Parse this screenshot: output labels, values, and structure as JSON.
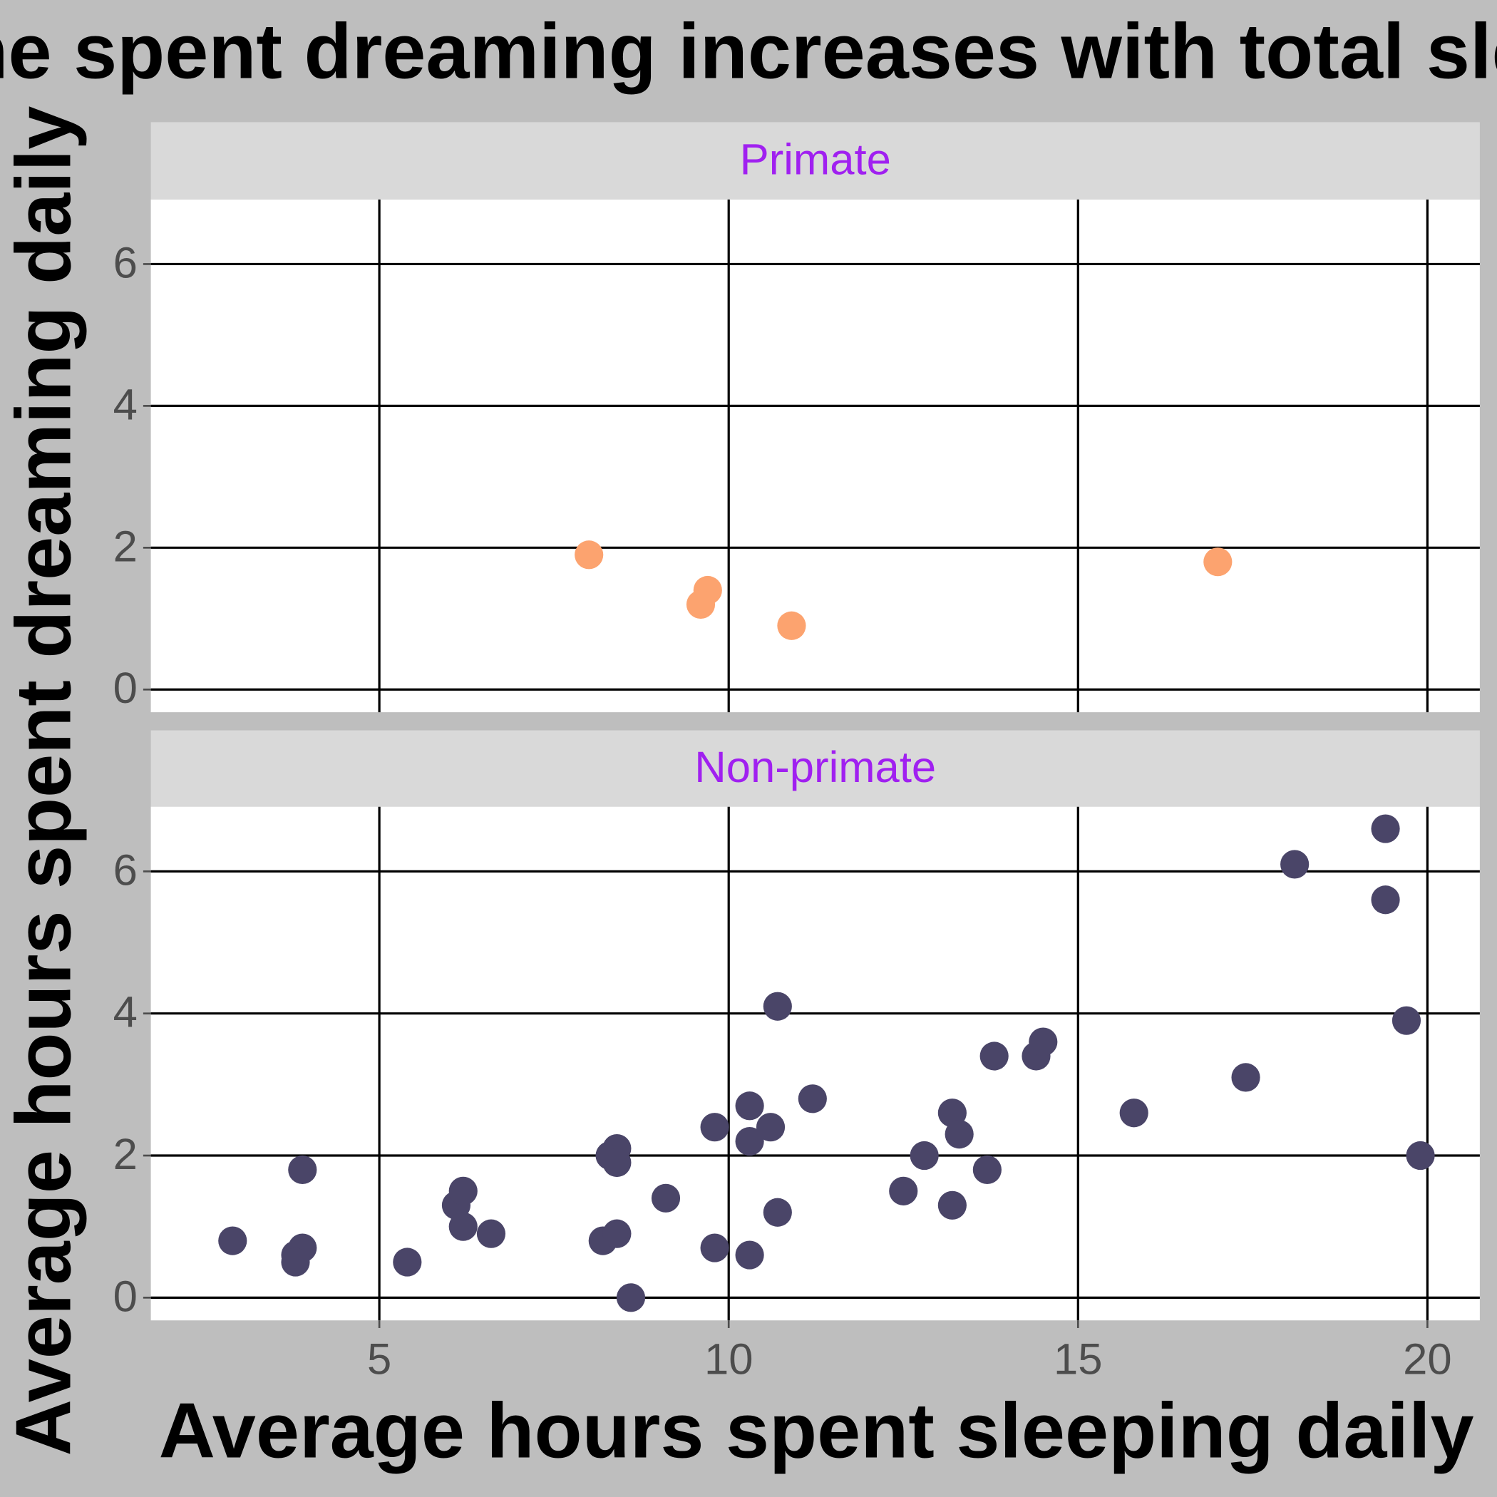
{
  "title": "Time spent dreaming increases with total sleep",
  "x_label": "Average hours spent sleeping daily",
  "y_label": "Average hours spent dreaming daily",
  "chart_data": [
    {
      "type": "scatter",
      "title": "Primate",
      "color": "#fca36f",
      "x": [
        8.0,
        9.7,
        9.6,
        10.9,
        17.0
      ],
      "values": [
        1.9,
        1.4,
        1.2,
        0.9,
        1.8
      ],
      "xlim": [
        1.73,
        20.75
      ],
      "xticks": [
        5,
        10,
        15,
        20
      ],
      "ylim": [
        -0.32,
        6.91
      ],
      "yticks": [
        0,
        2,
        4,
        6
      ],
      "grid": true
    },
    {
      "type": "scatter",
      "title": "Non-primate",
      "color": "#4a4568",
      "x": [
        2.9,
        3.9,
        3.8,
        3.9,
        3.8,
        5.4,
        6.1,
        6.2,
        6.2,
        6.6,
        8.2,
        8.3,
        8.4,
        8.4,
        8.4,
        8.6,
        9.1,
        9.8,
        9.8,
        10.3,
        10.3,
        10.3,
        10.6,
        10.7,
        10.7,
        11.2,
        12.5,
        12.8,
        13.2,
        13.2,
        13.3,
        13.7,
        13.8,
        14.4,
        14.5,
        15.8,
        17.4,
        18.1,
        19.4,
        19.4,
        19.7,
        19.9
      ],
      "values": [
        0.8,
        1.8,
        0.6,
        0.7,
        0.5,
        0.5,
        1.3,
        1.5,
        1.0,
        0.9,
        0.8,
        2.0,
        2.1,
        1.9,
        0.9,
        0.0,
        1.4,
        2.4,
        0.7,
        2.7,
        2.2,
        0.6,
        2.4,
        4.1,
        1.2,
        2.8,
        1.5,
        2.0,
        2.6,
        1.3,
        2.3,
        1.8,
        3.4,
        3.4,
        3.6,
        2.6,
        3.1,
        6.1,
        6.6,
        5.6,
        3.9,
        2.0
      ],
      "xlim": [
        1.73,
        20.75
      ],
      "xticks": [
        5,
        10,
        15,
        20
      ],
      "ylim": [
        -0.32,
        6.91
      ],
      "yticks": [
        0,
        2,
        4,
        6
      ],
      "grid": true
    }
  ]
}
